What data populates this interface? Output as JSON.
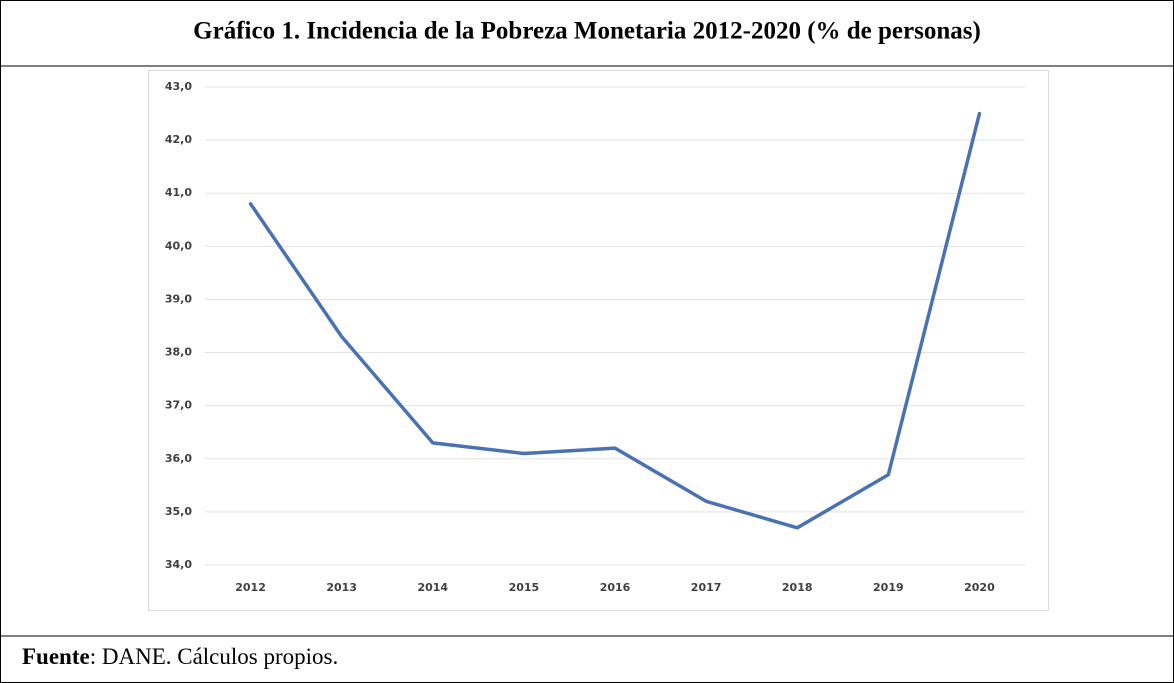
{
  "title": "Gráfico 1. Incidencia de la Pobreza Monetaria 2012-2020 (% de personas)",
  "source_label": "Fuente",
  "source_text": ": DANE. Cálculos propios.",
  "chart_data": {
    "type": "line",
    "categories": [
      "2012",
      "2013",
      "2014",
      "2015",
      "2016",
      "2017",
      "2018",
      "2019",
      "2020"
    ],
    "values": [
      40.8,
      38.3,
      36.3,
      36.1,
      36.2,
      35.2,
      34.7,
      35.7,
      42.5
    ],
    "color": "#4a72b0",
    "ylim": [
      34,
      43
    ],
    "yticks": [
      {
        "value": 34,
        "label": "34,0"
      },
      {
        "value": 35,
        "label": "35,0"
      },
      {
        "value": 36,
        "label": "36,0"
      },
      {
        "value": 37,
        "label": "37,0"
      },
      {
        "value": 38,
        "label": "38,0"
      },
      {
        "value": 39,
        "label": "39,0"
      },
      {
        "value": 40,
        "label": "40,0"
      },
      {
        "value": 41,
        "label": "41,0"
      },
      {
        "value": 42,
        "label": "42,0"
      },
      {
        "value": 43,
        "label": "43,0"
      }
    ],
    "grid": true
  }
}
